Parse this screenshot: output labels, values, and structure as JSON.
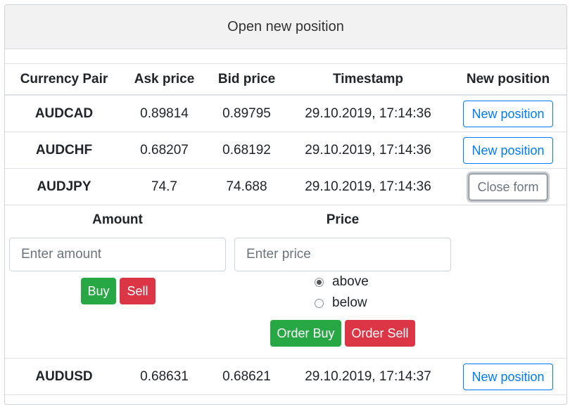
{
  "header": {
    "title": "Open new position"
  },
  "table": {
    "columns": [
      "Currency Pair",
      "Ask price",
      "Bid price",
      "Timestamp",
      "New position"
    ],
    "rows": [
      {
        "pair": "AUDCAD",
        "ask": "0.89814",
        "bid": "0.89795",
        "timestamp": "29.10.2019, 17:14:36",
        "action": "New position"
      },
      {
        "pair": "AUDCHF",
        "ask": "0.68207",
        "bid": "0.68192",
        "timestamp": "29.10.2019, 17:14:36",
        "action": "New position"
      },
      {
        "pair": "AUDJPY",
        "ask": "74.7",
        "bid": "74.688",
        "timestamp": "29.10.2019, 17:14:36",
        "action": "Close form"
      },
      {
        "pair": "AUDUSD",
        "ask": "0.68631",
        "bid": "0.68621",
        "timestamp": "29.10.2019, 17:14:37",
        "action": "New position"
      }
    ]
  },
  "form": {
    "amount_label": "Amount",
    "amount_placeholder": "Enter amount",
    "price_label": "Price",
    "price_placeholder": "Enter price",
    "buy_label": "Buy",
    "sell_label": "Sell",
    "radio_above": "above",
    "radio_below": "below",
    "radio_selected": "above",
    "order_buy_label": "Order Buy",
    "order_sell_label": "Order Sell"
  },
  "colors": {
    "primary": "#007bff",
    "success": "#28a745",
    "danger": "#dc3545",
    "secondary": "#6c757d"
  }
}
